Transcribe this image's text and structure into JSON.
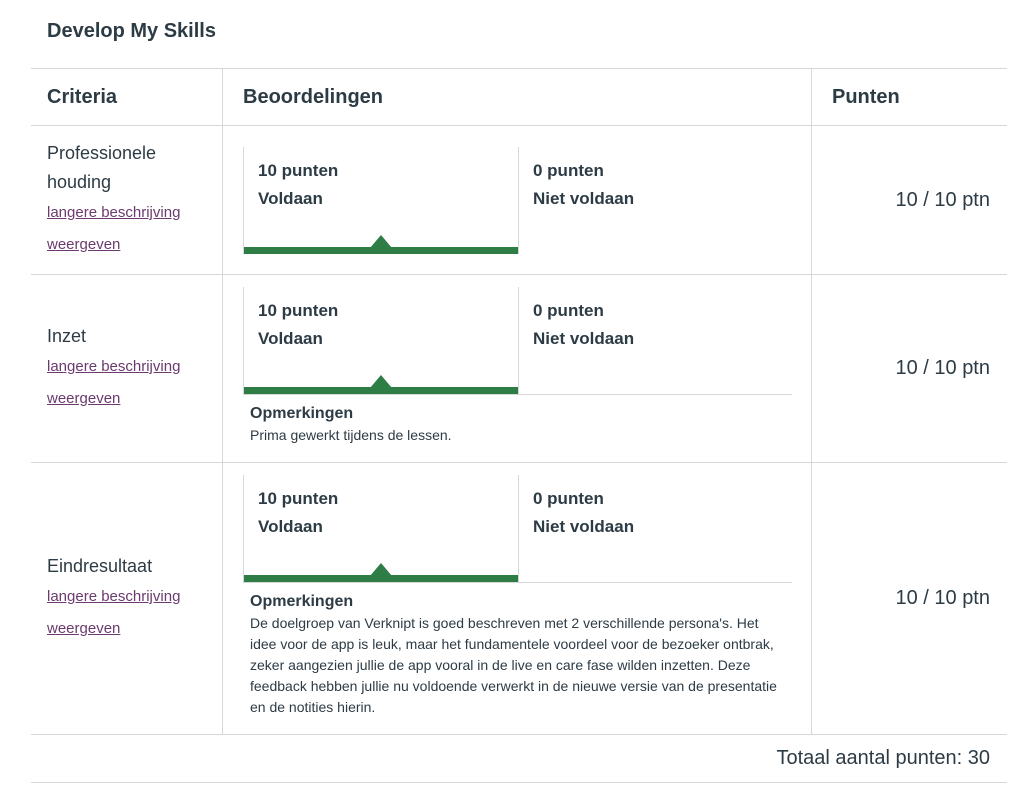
{
  "title": "Develop My Skills",
  "header": {
    "criteria": "Criteria",
    "ratings": "Beoordelingen",
    "points": "Punten"
  },
  "rows": [
    {
      "criterion": "Professionele houding",
      "link": "langere beschrijving weergeven",
      "ratings": [
        {
          "points": "10 punten",
          "label": "Voldaan"
        },
        {
          "points": "0 punten",
          "label": "Niet voldaan"
        }
      ],
      "selected": 0,
      "points": "10 / 10 ptn"
    },
    {
      "criterion": "Inzet",
      "link": "langere beschrijving weergeven",
      "ratings": [
        {
          "points": "10 punten",
          "label": "Voldaan"
        },
        {
          "points": "0 punten",
          "label": "Niet voldaan"
        }
      ],
      "selected": 0,
      "comments_heading": "Opmerkingen",
      "comment": "Prima gewerkt tijdens de lessen.",
      "points": "10 / 10 ptn"
    },
    {
      "criterion": "Eindresultaat",
      "link": "langere beschrijving weergeven",
      "ratings": [
        {
          "points": "10 punten",
          "label": "Voldaan"
        },
        {
          "points": "0 punten",
          "label": "Niet voldaan"
        }
      ],
      "selected": 0,
      "comments_heading": "Opmerkingen",
      "comment": "De doelgroep van Verknipt is goed beschreven met 2 verschillende persona's. Het idee voor de app is leuk, maar het fundamentele voordeel voor de bezoeker ontbrak, zeker aangezien jullie de app vooral in de live en care fase wilden inzetten. Deze feedback hebben jullie nu voldoende verwerkt in de nieuwe versie van de presentatie en de notities hierin.",
      "points": "10 / 10 ptn"
    }
  ],
  "total": "Totaal aantal punten: 30"
}
